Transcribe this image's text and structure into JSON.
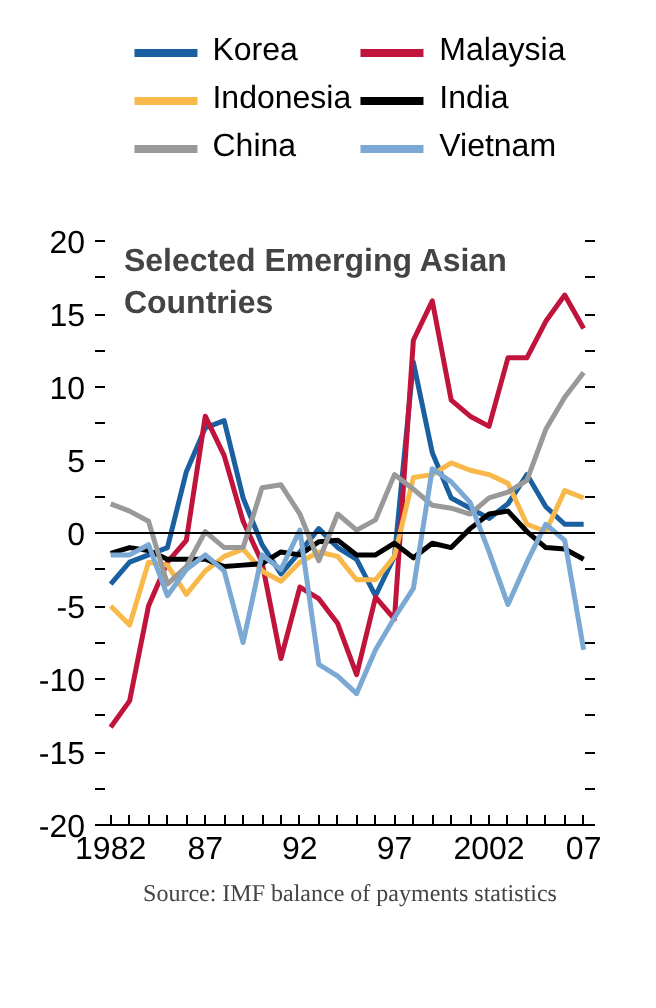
{
  "chart_data": {
    "type": "line",
    "title": "Selected Emerging Asian Countries",
    "x": [
      1982,
      1983,
      1984,
      1985,
      1986,
      1987,
      1988,
      1989,
      1990,
      1991,
      1992,
      1993,
      1994,
      1995,
      1996,
      1997,
      1998,
      1999,
      2000,
      2001,
      2002,
      2003,
      2004,
      2005,
      2006,
      2007
    ],
    "series": [
      {
        "name": "Korea",
        "color": "#1a5fa0",
        "values": [
          -3.5,
          -2,
          -1.5,
          -1,
          4.2,
          7.2,
          7.7,
          2.4,
          -0.8,
          -2.8,
          -1.3,
          0.3,
          -1,
          -1.8,
          -4.3,
          -1.6,
          11.7,
          5.5,
          2.4,
          1.7,
          1,
          2,
          4,
          1.8,
          0.6,
          0.6
        ]
      },
      {
        "name": "Malaysia",
        "color": "#c0143c",
        "values": [
          -13.3,
          -11.5,
          -5,
          -2,
          -0.5,
          8,
          5.3,
          0.8,
          -2,
          -8.6,
          -3.7,
          -4.5,
          -6.2,
          -9.7,
          -4.4,
          -5.9,
          13.2,
          15.9,
          9.1,
          8,
          7.3,
          12,
          12,
          14.5,
          16.3,
          14
        ]
      },
      {
        "name": "Indonesia",
        "color": "#f8b94a",
        "values": [
          -5,
          -6.3,
          -2,
          -2.2,
          -4.2,
          -2.6,
          -1.6,
          -1.1,
          -2.6,
          -3.3,
          -2,
          -1.3,
          -1.6,
          -3.2,
          -3.2,
          -1.6,
          3.8,
          4,
          4.8,
          4.3,
          4,
          3.4,
          0.6,
          0.1,
          2.9,
          2.4
        ]
      },
      {
        "name": "India",
        "color": "#000000",
        "values": [
          -1.4,
          -1,
          -1.2,
          -1.8,
          -1.8,
          -1.8,
          -2.3,
          -2.2,
          -2.1,
          -1.3,
          -1.5,
          -0.6,
          -0.5,
          -1.5,
          -1.5,
          -0.7,
          -1.7,
          -0.7,
          -1,
          0.3,
          1.3,
          1.5,
          0.1,
          -1,
          -1.1,
          -1.8
        ]
      },
      {
        "name": "China",
        "color": "#999999",
        "values": [
          2,
          1.5,
          0.8,
          -3.5,
          -2.3,
          0.1,
          -1,
          -1,
          3.1,
          3.3,
          1.3,
          -1.9,
          1.3,
          0.2,
          0.9,
          4,
          3,
          1.9,
          1.7,
          1.3,
          2.4,
          2.8,
          3.6,
          7.1,
          9.3,
          11
        ]
      },
      {
        "name": "Vietnam",
        "color": "#7ba9d4",
        "values": [
          -1.5,
          -1.5,
          -0.8,
          -4.3,
          -2.5,
          -1.5,
          -2.6,
          -7.5,
          -1.5,
          -2.5,
          0.2,
          -9,
          -9.8,
          -11,
          -8,
          -5.8,
          -3.8,
          4.4,
          3.5,
          2.1,
          -1.3,
          -4.9,
          -2,
          0.6,
          -0.5,
          -8
        ]
      }
    ],
    "xlim": [
      1981.7,
      2007.6
    ],
    "ylim": [
      -20,
      20
    ],
    "xticks": [
      {
        "value": 1982,
        "label": "1982"
      },
      {
        "value": 1983,
        "label": null
      },
      {
        "value": 1984,
        "label": null
      },
      {
        "value": 1985,
        "label": null
      },
      {
        "value": 1986,
        "label": null
      },
      {
        "value": 1987,
        "label": "87"
      },
      {
        "value": 1988,
        "label": null
      },
      {
        "value": 1989,
        "label": null
      },
      {
        "value": 1990,
        "label": null
      },
      {
        "value": 1991,
        "label": null
      },
      {
        "value": 1992,
        "label": "92"
      },
      {
        "value": 1993,
        "label": null
      },
      {
        "value": 1994,
        "label": null
      },
      {
        "value": 1995,
        "label": null
      },
      {
        "value": 1996,
        "label": null
      },
      {
        "value": 1997,
        "label": "97"
      },
      {
        "value": 1998,
        "label": null
      },
      {
        "value": 1999,
        "label": null
      },
      {
        "value": 2000,
        "label": null
      },
      {
        "value": 2001,
        "label": null
      },
      {
        "value": 2002,
        "label": "2002"
      },
      {
        "value": 2003,
        "label": null
      },
      {
        "value": 2004,
        "label": null
      },
      {
        "value": 2005,
        "label": null
      },
      {
        "value": 2006,
        "label": null
      },
      {
        "value": 2007,
        "label": "07"
      }
    ],
    "yticks": [
      -20,
      {
        "value": -17.5,
        "label": null
      },
      -15,
      {
        "value": -12.5,
        "label": null
      },
      -10,
      {
        "value": -7.5,
        "label": null
      },
      -5,
      {
        "value": -2.5,
        "label": null
      },
      0,
      {
        "value": 2.5,
        "label": null
      },
      5,
      {
        "value": 7.5,
        "label": null
      },
      10,
      {
        "value": 12.5,
        "label": null
      },
      15,
      {
        "value": 17.5,
        "label": null
      },
      20
    ],
    "ref_lines": [
      {
        "axis": "y",
        "value": 0,
        "color": "#000000"
      }
    ],
    "grid": false,
    "legend": "top",
    "line_style": "solid",
    "marker": "none",
    "annotations": [
      "Source: IMF balance of payments statistics"
    ]
  }
}
